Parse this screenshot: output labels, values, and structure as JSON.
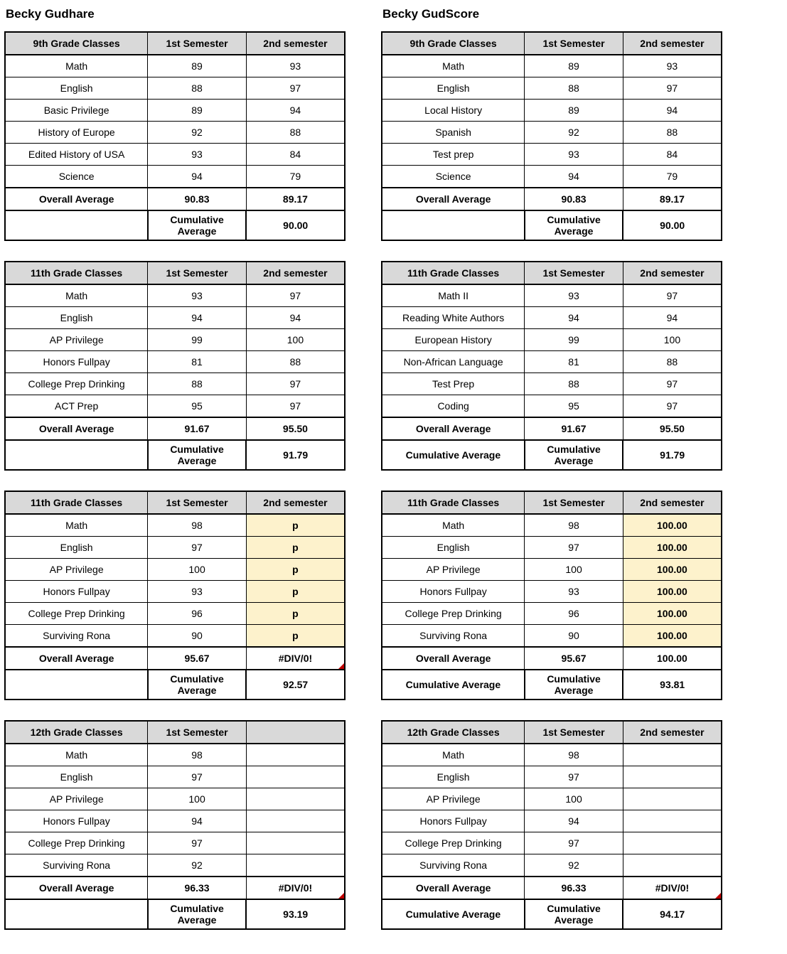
{
  "styling": {
    "header_bg": "#d9d9d9",
    "highlight_bg": "#fdf2cc",
    "error_triangle_color": "#c00000"
  },
  "columns": [
    {
      "student": "Becky Gudhare",
      "blocks": [
        {
          "grade_header": "9th Grade Classes",
          "sem1_header": "1st Semester",
          "sem2_header": "2nd semester",
          "rows": [
            {
              "name": "Math",
              "s1": "89",
              "s2": "93"
            },
            {
              "name": "English",
              "s1": "88",
              "s2": "97"
            },
            {
              "name": "Basic Privilege",
              "s1": "89",
              "s2": "94"
            },
            {
              "name": "History of Europe",
              "s1": "92",
              "s2": "88"
            },
            {
              "name": "Edited History of USA",
              "s1": "93",
              "s2": "84"
            },
            {
              "name": "Science",
              "s1": "94",
              "s2": "79"
            }
          ],
          "overall_label": "Overall Average",
          "overall_s1": "90.83",
          "overall_s2": "89.17",
          "cumul_label": "Cumulative Average",
          "cumul_val": "90.00",
          "cumul_blank_first": true
        },
        {
          "grade_header": "11th Grade Classes",
          "sem1_header": "1st Semester",
          "sem2_header": "2nd semester",
          "rows": [
            {
              "name": "Math",
              "s1": "93",
              "s2": "97"
            },
            {
              "name": "English",
              "s1": "94",
              "s2": "94"
            },
            {
              "name": "AP Privilege",
              "s1": "99",
              "s2": "100"
            },
            {
              "name": "Honors Fullpay",
              "s1": "81",
              "s2": "88"
            },
            {
              "name": "College Prep Drinking",
              "s1": "88",
              "s2": "97"
            },
            {
              "name": "ACT Prep",
              "s1": "95",
              "s2": "97"
            }
          ],
          "overall_label": "Overall Average",
          "overall_s1": "91.67",
          "overall_s2": "95.50",
          "cumul_label": "Cumulative Average",
          "cumul_val": "91.79",
          "cumul_blank_first": true
        },
        {
          "grade_header": "11th Grade Classes",
          "sem1_header": "1st Semester",
          "sem2_header": "2nd semester",
          "rows": [
            {
              "name": "Math",
              "s1": "98",
              "s2": "p",
              "s2_hl": true
            },
            {
              "name": "English",
              "s1": "97",
              "s2": "p",
              "s2_hl": true
            },
            {
              "name": "AP Privilege",
              "s1": "100",
              "s2": "p",
              "s2_hl": true
            },
            {
              "name": "Honors Fullpay",
              "s1": "93",
              "s2": "p",
              "s2_hl": true
            },
            {
              "name": "College Prep Drinking",
              "s1": "96",
              "s2": "p",
              "s2_hl": true
            },
            {
              "name": "Surviving Rona",
              "s1": "90",
              "s2": "p",
              "s2_hl": true
            }
          ],
          "overall_label": "Overall Average",
          "overall_s1": "95.67",
          "overall_s2": "#DIV/0!",
          "overall_s2_err": true,
          "cumul_label": "Cumulative Average",
          "cumul_val": "92.57",
          "cumul_blank_first": true
        },
        {
          "grade_header": "12th Grade Classes",
          "sem1_header": "1st Semester",
          "sem2_header": "",
          "rows": [
            {
              "name": "Math",
              "s1": "98",
              "s2": ""
            },
            {
              "name": "English",
              "s1": "97",
              "s2": ""
            },
            {
              "name": "AP Privilege",
              "s1": "100",
              "s2": ""
            },
            {
              "name": "Honors Fullpay",
              "s1": "94",
              "s2": ""
            },
            {
              "name": "College Prep Drinking",
              "s1": "97",
              "s2": ""
            },
            {
              "name": "Surviving Rona",
              "s1": "92",
              "s2": ""
            }
          ],
          "overall_label": "Overall Average",
          "overall_s1": "96.33",
          "overall_s2": "#DIV/0!",
          "overall_s2_err": true,
          "cumul_label": "Cumulative Average",
          "cumul_val": "93.19",
          "cumul_blank_first": true
        }
      ]
    },
    {
      "student": "Becky GudScore",
      "blocks": [
        {
          "grade_header": "9th Grade Classes",
          "sem1_header": "1st Semester",
          "sem2_header": "2nd semester",
          "rows": [
            {
              "name": "Math",
              "s1": "89",
              "s2": "93"
            },
            {
              "name": "English",
              "s1": "88",
              "s2": "97"
            },
            {
              "name": "Local History",
              "s1": "89",
              "s2": "94"
            },
            {
              "name": "Spanish",
              "s1": "92",
              "s2": "88"
            },
            {
              "name": "Test prep",
              "s1": "93",
              "s2": "84"
            },
            {
              "name": "Science",
              "s1": "94",
              "s2": "79"
            }
          ],
          "overall_label": "Overall Average",
          "overall_s1": "90.83",
          "overall_s2": "89.17",
          "cumul_label": "Cumulative Average",
          "cumul_val": "90.00",
          "cumul_blank_first": true
        },
        {
          "grade_header": "11th Grade Classes",
          "sem1_header": "1st Semester",
          "sem2_header": "2nd semester",
          "rows": [
            {
              "name": "Math II",
              "s1": "93",
              "s2": "97"
            },
            {
              "name": "Reading White Authors",
              "s1": "94",
              "s2": "94"
            },
            {
              "name": "European History",
              "s1": "99",
              "s2": "100"
            },
            {
              "name": "Non-African Language",
              "s1": "81",
              "s2": "88"
            },
            {
              "name": "Test Prep",
              "s1": "88",
              "s2": "97"
            },
            {
              "name": "Coding",
              "s1": "95",
              "s2": "97"
            }
          ],
          "overall_label": "Overall Average",
          "overall_s1": "91.67",
          "overall_s2": "95.50",
          "cumul_first": "Cumulative Average",
          "cumul_label": "Cumulative Average",
          "cumul_val": "91.79",
          "cumul_blank_first": false
        },
        {
          "grade_header": "11th Grade Classes",
          "sem1_header": "1st Semester",
          "sem2_header": "2nd semester",
          "rows": [
            {
              "name": "Math",
              "s1": "98",
              "s2": "100.00",
              "s2_hl": true
            },
            {
              "name": "English",
              "s1": "97",
              "s2": "100.00",
              "s2_hl": true
            },
            {
              "name": "AP Privilege",
              "s1": "100",
              "s2": "100.00",
              "s2_hl": true
            },
            {
              "name": "Honors Fullpay",
              "s1": "93",
              "s2": "100.00",
              "s2_hl": true
            },
            {
              "name": "College Prep Drinking",
              "s1": "96",
              "s2": "100.00",
              "s2_hl": true
            },
            {
              "name": "Surviving Rona",
              "s1": "90",
              "s2": "100.00",
              "s2_hl": true
            }
          ],
          "overall_label": "Overall Average",
          "overall_s1": "95.67",
          "overall_s2": "100.00",
          "cumul_first": "Cumulative Average",
          "cumul_label": "Cumulative Average",
          "cumul_val": "93.81",
          "cumul_blank_first": false
        },
        {
          "grade_header": "12th Grade Classes",
          "sem1_header": "1st Semester",
          "sem2_header": "2nd semester",
          "rows": [
            {
              "name": "Math",
              "s1": "98",
              "s2": ""
            },
            {
              "name": "English",
              "s1": "97",
              "s2": ""
            },
            {
              "name": "AP Privilege",
              "s1": "100",
              "s2": ""
            },
            {
              "name": "Honors Fullpay",
              "s1": "94",
              "s2": ""
            },
            {
              "name": "College Prep Drinking",
              "s1": "97",
              "s2": ""
            },
            {
              "name": "Surviving Rona",
              "s1": "92",
              "s2": ""
            }
          ],
          "overall_label": "Overall Average",
          "overall_s1": "96.33",
          "overall_s2": "#DIV/0!",
          "overall_s2_err": true,
          "cumul_first": "Cumulative Average",
          "cumul_label": "Cumulative Average",
          "cumul_val": "94.17",
          "cumul_blank_first": false
        }
      ]
    }
  ]
}
